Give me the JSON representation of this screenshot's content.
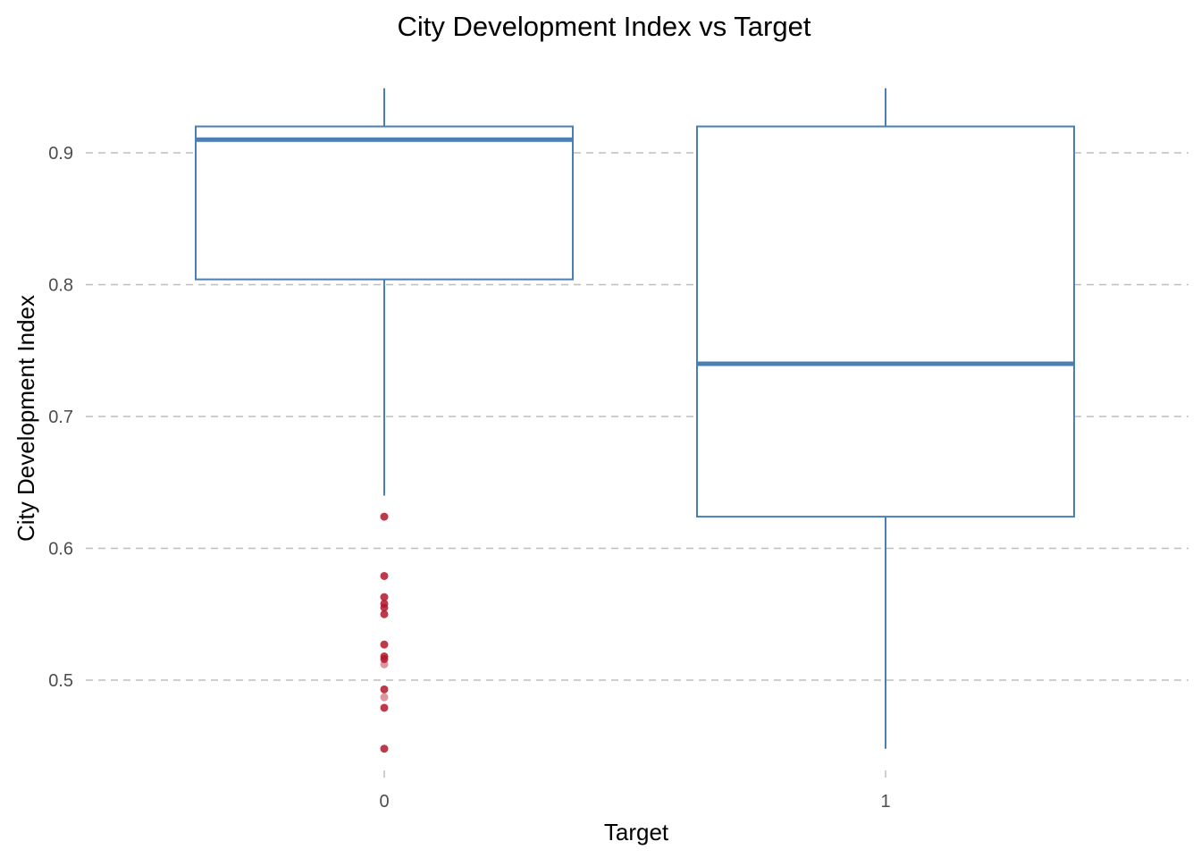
{
  "chart_data": {
    "type": "boxplot",
    "title": "City Development Index vs Target",
    "xlabel": "Target",
    "ylabel": "City Development Index",
    "categories": [
      "0",
      "1"
    ],
    "ylim": [
      0.435,
      0.95
    ],
    "yticks": [
      0.5,
      0.6,
      0.7,
      0.8,
      0.9
    ],
    "ytick_labels": [
      "0.5",
      "0.6",
      "0.7",
      "0.8",
      "0.9"
    ],
    "grid": "horizontal dashed",
    "box_color": "#4a7fb5",
    "outlier_color": "#b2182b",
    "boxes": [
      {
        "category": "0",
        "whisker_low": 0.64,
        "q1": 0.804,
        "median": 0.91,
        "q3": 0.92,
        "whisker_high": 0.949,
        "outliers": [
          0.624,
          0.579,
          0.563,
          0.558,
          0.555,
          0.55,
          0.527,
          0.518,
          0.516,
          0.512,
          0.493,
          0.487,
          0.479,
          0.448
        ]
      },
      {
        "category": "1",
        "whisker_low": 0.448,
        "q1": 0.624,
        "median": 0.74,
        "q3": 0.92,
        "whisker_high": 0.949,
        "outliers": []
      }
    ]
  }
}
